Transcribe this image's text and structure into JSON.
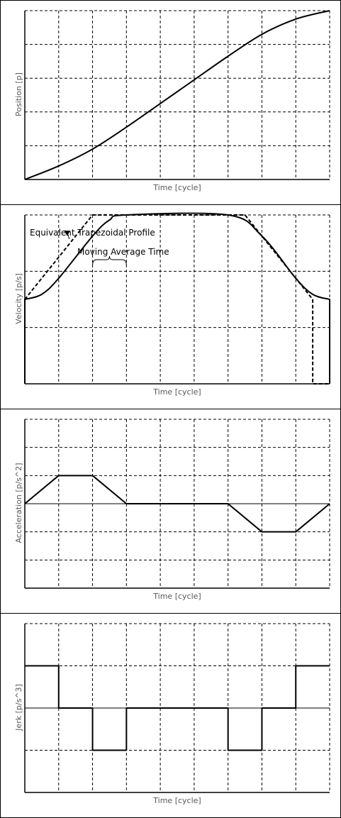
{
  "colors": {
    "frame": "#000000",
    "grid": "#000000",
    "curve": "#000000",
    "label": "#595959",
    "background": "#ffffff"
  },
  "chart_data": [
    {
      "type": "line",
      "title": "",
      "xlabel": "Time [cycle]",
      "ylabel": "Position [p]",
      "xlim": [
        0,
        9
      ],
      "ylim": [
        0,
        5
      ],
      "grid": true,
      "series": [
        {
          "style": "solid",
          "shape": "smooth",
          "x": [
            0,
            1,
            2,
            3,
            4,
            5,
            6,
            7,
            8,
            9
          ],
          "y": [
            0,
            0.4,
            0.9,
            1.55,
            2.25,
            2.95,
            3.65,
            4.3,
            4.75,
            5
          ]
        }
      ]
    },
    {
      "type": "line",
      "title": "",
      "xlabel": "Time [cycle]",
      "ylabel": "Velocity [p/s]",
      "xlim": [
        0,
        9
      ],
      "ylim": [
        0,
        2
      ],
      "grid": true,
      "annotations": [
        {
          "text": "Equivalent Trapezoidal Profile",
          "arrow_to": [
            1.25,
            1.75
          ]
        },
        {
          "text": "Moving Average Time",
          "brace_from": 2,
          "brace_to": 3
        }
      ],
      "series": [
        {
          "style": "solid",
          "shape": "smooth",
          "x": [
            0,
            0,
            0.5,
            1,
            2,
            2.5,
            3,
            6,
            7,
            8,
            8.5,
            9,
            9
          ],
          "y": [
            0,
            1,
            1.06,
            1.25,
            1.75,
            1.94,
            2,
            2,
            1.75,
            1.25,
            1.06,
            1,
            0
          ]
        },
        {
          "style": "dashed",
          "shape": "linear",
          "x": [
            0,
            2,
            6.5,
            8.5,
            8.5,
            9,
            9
          ],
          "y": [
            1,
            2,
            2,
            1,
            0,
            0,
            1
          ]
        }
      ]
    },
    {
      "type": "line",
      "title": "",
      "xlabel": "Time [cycle]",
      "ylabel": "Acceleration [p/s^2]",
      "xlim": [
        0,
        9
      ],
      "ylim": [
        -3,
        3
      ],
      "grid": true,
      "series": [
        {
          "style": "solid",
          "shape": "linear",
          "x": [
            0,
            1,
            2,
            3,
            6,
            7,
            8,
            9
          ],
          "y": [
            0,
            1,
            1,
            0,
            0,
            -1,
            -1,
            0
          ]
        }
      ]
    },
    {
      "type": "line",
      "title": "",
      "xlabel": "Time [cycle]",
      "ylabel": "Jerk [p/s^3]",
      "xlim": [
        0,
        9
      ],
      "ylim": [
        -2,
        2
      ],
      "grid": true,
      "series": [
        {
          "style": "solid",
          "shape": "step",
          "x": [
            0,
            1,
            1,
            2,
            2,
            3,
            3,
            6,
            6,
            7,
            7,
            8,
            8,
            9
          ],
          "y": [
            1,
            1,
            0,
            0,
            -1,
            -1,
            0,
            0,
            -1,
            -1,
            0,
            0,
            1,
            1
          ]
        }
      ]
    }
  ]
}
